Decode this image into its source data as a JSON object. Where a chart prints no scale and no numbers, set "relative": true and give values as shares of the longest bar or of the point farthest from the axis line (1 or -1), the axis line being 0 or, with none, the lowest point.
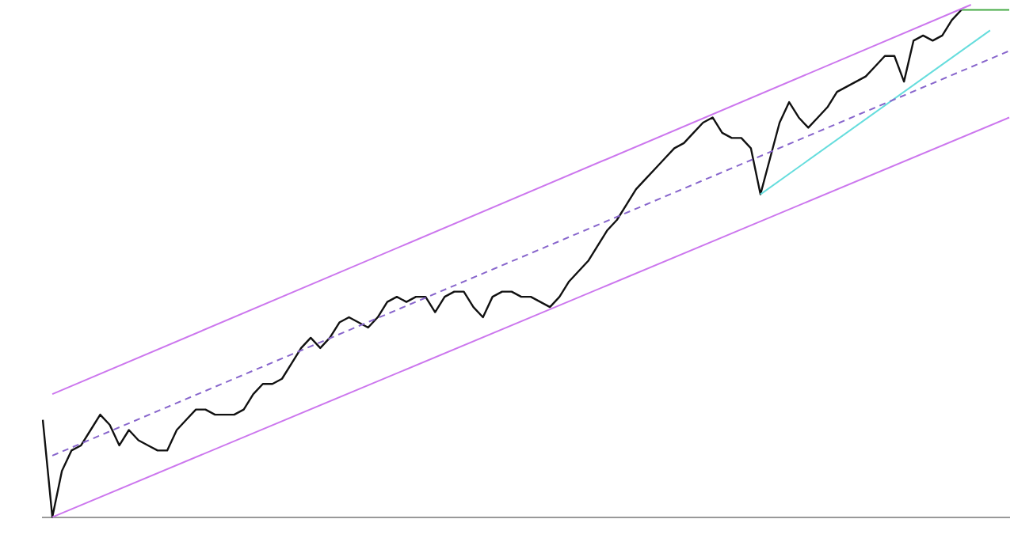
{
  "chart_data": {
    "type": "line",
    "relative": true,
    "marker": "none",
    "grid": false,
    "legend": false,
    "categories": [
      null,
      null,
      null,
      null,
      null,
      null,
      null,
      null,
      null,
      null,
      null,
      null,
      null,
      null,
      null,
      null,
      null,
      null,
      null,
      null,
      null,
      null,
      null,
      null,
      null,
      null,
      null,
      null,
      null,
      null,
      null,
      null,
      null,
      null,
      null,
      null,
      null,
      null,
      null,
      null,
      null,
      null,
      null,
      null,
      null,
      null,
      null,
      null,
      null,
      null,
      null,
      null,
      null,
      null,
      null,
      null,
      null,
      null,
      null,
      null,
      null,
      null,
      null,
      null,
      null,
      null,
      null,
      null,
      null,
      null,
      null,
      null,
      null,
      null,
      null,
      null,
      null,
      null,
      null,
      null,
      null,
      null,
      null,
      null,
      null,
      null,
      null,
      null,
      null,
      null,
      null,
      null,
      null,
      null,
      null,
      null,
      null,
      null,
      null,
      null,
      null,
      null
    ],
    "series": [
      {
        "color": "#cc77ee",
        "values": [
          null,
          0.24,
          null,
          null,
          null,
          null,
          null,
          null,
          null,
          null,
          null,
          null,
          null,
          null,
          null,
          null,
          null,
          null,
          null,
          null,
          null,
          null,
          null,
          null,
          null,
          null,
          null,
          null,
          null,
          null,
          null,
          null,
          null,
          null,
          null,
          null,
          null,
          null,
          null,
          null,
          null,
          null,
          null,
          null,
          null,
          null,
          null,
          null,
          null,
          null,
          null,
          null,
          null,
          null,
          null,
          null,
          null,
          null,
          null,
          null,
          null,
          null,
          null,
          null,
          null,
          null,
          null,
          null,
          null,
          null,
          null,
          null,
          null,
          null,
          null,
          null,
          null,
          null,
          null,
          null,
          null,
          null,
          null,
          null,
          null,
          null,
          null,
          null,
          null,
          null,
          null,
          null,
          null,
          null,
          null,
          null,
          null,
          1.0,
          null,
          null,
          null,
          null
        ]
      },
      {
        "color": "#8866cc",
        "line_style": "dashed",
        "values": [
          null,
          0.12,
          null,
          null,
          null,
          null,
          null,
          null,
          null,
          null,
          null,
          null,
          null,
          null,
          null,
          null,
          null,
          null,
          null,
          null,
          null,
          null,
          null,
          null,
          null,
          null,
          null,
          null,
          null,
          null,
          null,
          null,
          null,
          null,
          null,
          null,
          null,
          null,
          null,
          null,
          null,
          null,
          null,
          null,
          null,
          null,
          null,
          null,
          null,
          null,
          null,
          null,
          null,
          null,
          null,
          null,
          null,
          null,
          null,
          null,
          null,
          null,
          null,
          null,
          null,
          null,
          null,
          null,
          null,
          null,
          null,
          null,
          null,
          null,
          null,
          null,
          null,
          null,
          null,
          null,
          null,
          null,
          null,
          null,
          null,
          null,
          null,
          null,
          null,
          null,
          null,
          null,
          null,
          null,
          null,
          null,
          null,
          null,
          null,
          null,
          null,
          0.91
        ]
      },
      {
        "color": "#cc77ee",
        "values": [
          null,
          0.0,
          null,
          null,
          null,
          null,
          null,
          null,
          null,
          null,
          null,
          null,
          null,
          null,
          null,
          null,
          null,
          null,
          null,
          null,
          null,
          null,
          null,
          null,
          null,
          null,
          null,
          null,
          null,
          null,
          null,
          null,
          null,
          null,
          null,
          null,
          null,
          null,
          null,
          null,
          null,
          null,
          null,
          null,
          null,
          null,
          null,
          null,
          null,
          null,
          null,
          null,
          null,
          null,
          null,
          null,
          null,
          null,
          null,
          null,
          null,
          null,
          null,
          null,
          null,
          null,
          null,
          null,
          null,
          null,
          null,
          null,
          null,
          null,
          null,
          null,
          null,
          null,
          null,
          null,
          null,
          null,
          null,
          null,
          null,
          null,
          null,
          null,
          null,
          null,
          null,
          null,
          null,
          null,
          null,
          null,
          null,
          null,
          null,
          null,
          null,
          0.78
        ]
      },
      {
        "color": "#66dddd",
        "values": [
          null,
          null,
          null,
          null,
          null,
          null,
          null,
          null,
          null,
          null,
          null,
          null,
          null,
          null,
          null,
          null,
          null,
          null,
          null,
          null,
          null,
          null,
          null,
          null,
          null,
          null,
          null,
          null,
          null,
          null,
          null,
          null,
          null,
          null,
          null,
          null,
          null,
          null,
          null,
          null,
          null,
          null,
          null,
          null,
          null,
          null,
          null,
          null,
          null,
          null,
          null,
          null,
          null,
          null,
          null,
          null,
          null,
          null,
          null,
          null,
          null,
          null,
          null,
          null,
          null,
          null,
          null,
          null,
          null,
          null,
          null,
          null,
          null,
          null,
          null,
          0.63,
          null,
          null,
          null,
          null,
          null,
          null,
          null,
          null,
          null,
          null,
          null,
          null,
          null,
          null,
          null,
          null,
          null,
          null,
          null,
          null,
          null,
          null,
          null,
          0.95,
          null,
          null
        ]
      },
      {
        "color": "#44aa44",
        "values": [
          null,
          null,
          null,
          null,
          null,
          null,
          null,
          null,
          null,
          null,
          null,
          null,
          null,
          null,
          null,
          null,
          null,
          null,
          null,
          null,
          null,
          null,
          null,
          null,
          null,
          null,
          null,
          null,
          null,
          null,
          null,
          null,
          null,
          null,
          null,
          null,
          null,
          null,
          null,
          null,
          null,
          null,
          null,
          null,
          null,
          null,
          null,
          null,
          null,
          null,
          null,
          null,
          null,
          null,
          null,
          null,
          null,
          null,
          null,
          null,
          null,
          null,
          null,
          null,
          null,
          null,
          null,
          null,
          null,
          null,
          null,
          null,
          null,
          null,
          null,
          null,
          null,
          null,
          null,
          null,
          null,
          null,
          null,
          null,
          null,
          null,
          null,
          null,
          null,
          null,
          null,
          null,
          null,
          null,
          null,
          null,
          0.99,
          null,
          null,
          null,
          null,
          0.99
        ]
      },
      {
        "color": "#111111",
        "values": [
          0.19,
          0.0,
          0.09,
          0.13,
          0.14,
          0.17,
          0.2,
          0.18,
          0.14,
          0.17,
          0.15,
          0.14,
          0.13,
          0.13,
          0.17,
          0.19,
          0.21,
          0.21,
          0.2,
          0.2,
          0.2,
          0.21,
          0.24,
          0.26,
          0.26,
          0.27,
          0.3,
          0.33,
          0.35,
          0.33,
          0.35,
          0.38,
          0.39,
          0.38,
          0.37,
          0.39,
          0.42,
          0.43,
          0.42,
          0.43,
          0.43,
          0.4,
          0.43,
          0.44,
          0.44,
          0.41,
          0.39,
          0.43,
          0.44,
          0.44,
          0.43,
          0.43,
          0.42,
          0.41,
          0.43,
          0.46,
          0.48,
          0.5,
          0.53,
          0.56,
          0.58,
          0.61,
          0.64,
          0.66,
          0.68,
          0.7,
          0.72,
          0.73,
          0.75,
          0.77,
          0.78,
          0.75,
          0.74,
          0.74,
          0.72,
          0.63,
          0.7,
          0.77,
          0.81,
          0.78,
          0.76,
          0.78,
          0.8,
          0.83,
          0.84,
          0.85,
          0.86,
          0.88,
          0.9,
          0.9,
          0.85,
          0.93,
          0.94,
          0.93,
          0.94,
          0.97,
          0.99,
          null,
          null,
          null,
          null,
          null
        ]
      }
    ]
  }
}
